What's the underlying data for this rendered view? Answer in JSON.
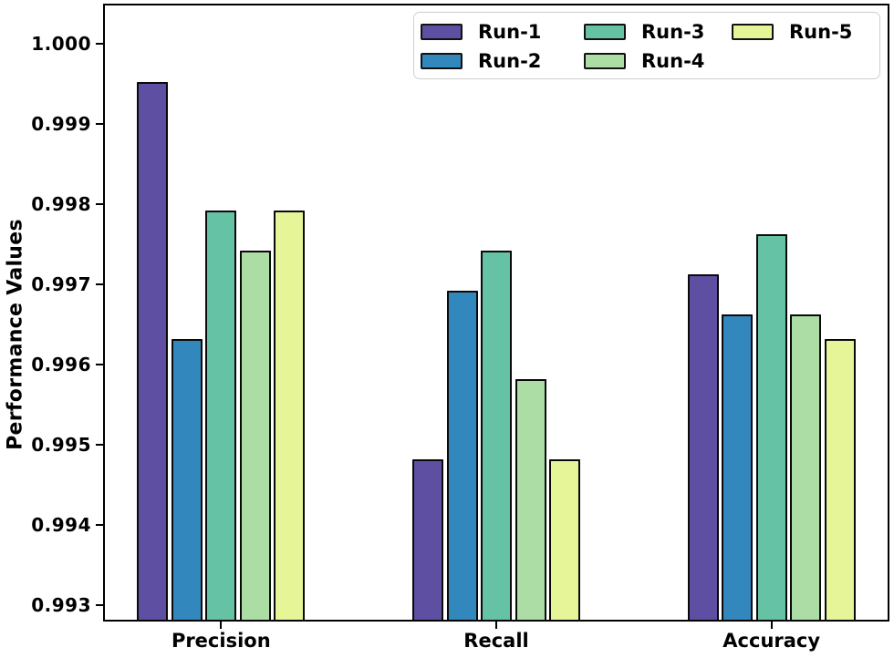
{
  "chart_data": {
    "type": "bar",
    "title": "",
    "xlabel": "",
    "ylabel": "Performance Values",
    "categories": [
      "Precision",
      "Recall",
      "Accuracy"
    ],
    "series": [
      {
        "name": "Run-1",
        "color": "#5e4fa2",
        "values": [
          0.9995,
          0.9948,
          0.9971
        ]
      },
      {
        "name": "Run-2",
        "color": "#3288bd",
        "values": [
          0.9963,
          0.9969,
          0.9966
        ]
      },
      {
        "name": "Run-3",
        "color": "#66c2a5",
        "values": [
          0.9979,
          0.9974,
          0.9976
        ]
      },
      {
        "name": "Run-4",
        "color": "#abdda4",
        "values": [
          0.9974,
          0.9958,
          0.9966
        ]
      },
      {
        "name": "Run-5",
        "color": "#e6f598",
        "values": [
          0.9979,
          0.9948,
          0.9963
        ]
      }
    ],
    "ylim": [
      0.9928,
      1.0005
    ],
    "yticks": [
      1.0,
      0.999,
      0.998,
      0.997,
      0.996,
      0.995,
      0.994,
      0.993
    ],
    "ytick_labels": [
      "1.000",
      "0.999",
      "0.998",
      "0.997",
      "0.996",
      "0.995",
      "0.994",
      "0.993"
    ],
    "grid": false,
    "legend_position": "upper right",
    "legend_columns": 3,
    "bar_edge_color": "#0a0a0a",
    "axis_color": "#000000",
    "background_color": "#ffffff"
  }
}
